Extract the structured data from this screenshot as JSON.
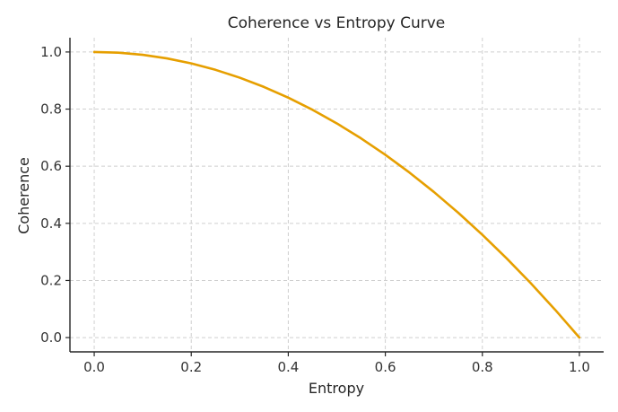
{
  "chart_data": {
    "type": "line",
    "title": "Coherence vs Entropy Curve",
    "xlabel": "Entropy",
    "ylabel": "Coherence",
    "xlim": [
      -0.05,
      1.05
    ],
    "ylim": [
      -0.05,
      1.05
    ],
    "xticks": [
      0.0,
      0.2,
      0.4,
      0.6,
      0.8,
      1.0
    ],
    "yticks": [
      0.0,
      0.2,
      0.4,
      0.6,
      0.8,
      1.0
    ],
    "xtick_labels": [
      "0.0",
      "0.2",
      "0.4",
      "0.6",
      "0.8",
      "1.0"
    ],
    "ytick_labels": [
      "0.0",
      "0.2",
      "0.4",
      "0.6",
      "0.8",
      "1.0"
    ],
    "grid": true,
    "series": [
      {
        "name": "Coherence",
        "color": "#E69F00",
        "x": [
          0.0,
          0.05,
          0.1,
          0.15,
          0.2,
          0.25,
          0.3,
          0.35,
          0.4,
          0.45,
          0.5,
          0.55,
          0.6,
          0.65,
          0.7,
          0.75,
          0.8,
          0.85,
          0.9,
          0.95,
          1.0
        ],
        "y": [
          1.0,
          0.9975,
          0.99,
          0.9775,
          0.96,
          0.9375,
          0.91,
          0.8775,
          0.84,
          0.7975,
          0.75,
          0.6975,
          0.64,
          0.5775,
          0.51,
          0.4375,
          0.36,
          0.2775,
          0.19,
          0.0975,
          0.0
        ]
      }
    ]
  }
}
